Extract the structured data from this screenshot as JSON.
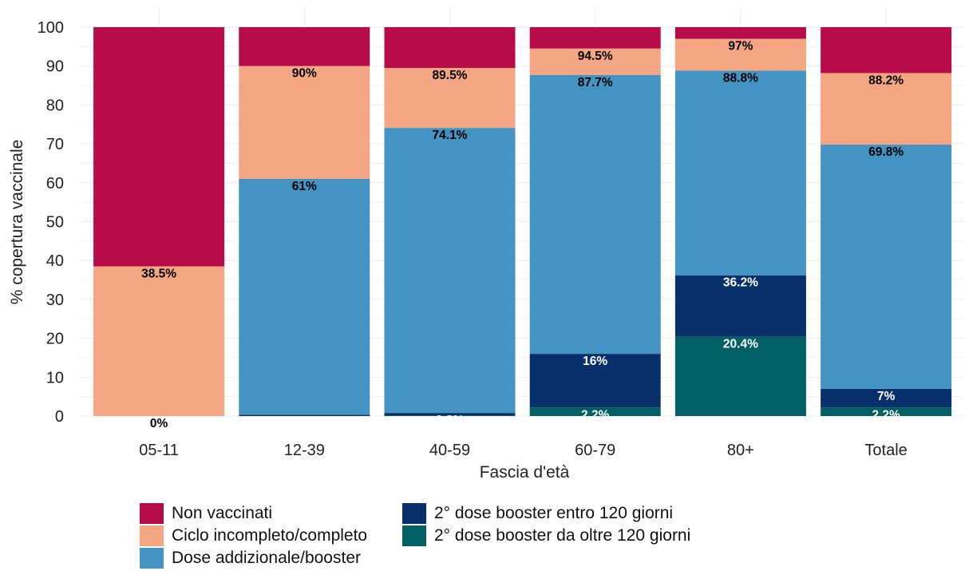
{
  "chart_data": {
    "type": "bar",
    "stacked": true,
    "xlabel": "Fascia d'età",
    "ylabel": "% copertura vaccinale",
    "ylim": [
      0,
      100
    ],
    "yticks": [
      0,
      10,
      20,
      30,
      40,
      50,
      60,
      70,
      80,
      90,
      100
    ],
    "grid": true,
    "legend_position": "bottom",
    "categories": [
      "05-11",
      "12-39",
      "40-59",
      "60-79",
      "80+",
      "Totale"
    ],
    "series": [
      {
        "name": "2° dose booster da oltre 120 giorni",
        "color": "#006064",
        "cumulative_top": [
          0,
          0,
          0.2,
          2.2,
          20.4,
          2.2
        ],
        "labels": [
          "",
          "",
          "",
          "2.2%",
          "20.4%",
          "2.2%"
        ],
        "label_color": "#ffffff"
      },
      {
        "name": "2° dose booster entro 120 giorni",
        "color": "#08306b",
        "cumulative_top": [
          0,
          0.3,
          0.8,
          16,
          36.2,
          7
        ],
        "labels": [
          "",
          "0.3%",
          "0.8%",
          "16%",
          "36.2%",
          "7%"
        ],
        "label_color": "#ffffff"
      },
      {
        "name": "Dose addizionale/booster",
        "color": "#4393c3",
        "cumulative_top": [
          0,
          61,
          74.1,
          87.7,
          88.8,
          69.8
        ],
        "labels": [
          "0%",
          "61%",
          "74.1%",
          "87.7%",
          "88.8%",
          "69.8%"
        ],
        "label_color": "#000000"
      },
      {
        "name": "Ciclo incompleto/completo",
        "color": "#f4a582",
        "cumulative_top": [
          38.5,
          90,
          89.5,
          94.5,
          97,
          88.2
        ],
        "labels": [
          "38.5%",
          "90%",
          "89.5%",
          "94.5%",
          "97%",
          "88.2%"
        ],
        "label_color": "#000000"
      },
      {
        "name": "Non vaccinati",
        "color": "#b80c4a",
        "cumulative_top": [
          100,
          100,
          100,
          100,
          100,
          100
        ],
        "labels": [
          "",
          "",
          "",
          "",
          "",
          ""
        ],
        "label_color": "#ffffff"
      }
    ]
  },
  "legend": [
    {
      "label": "Non vaccinati",
      "color": "#b80c4a"
    },
    {
      "label": "Ciclo incompleto/completo",
      "color": "#f4a582"
    },
    {
      "label": "Dose addizionale/booster",
      "color": "#4393c3"
    },
    {
      "label": "2° dose booster entro 120 giorni",
      "color": "#08306b"
    },
    {
      "label": "2° dose booster da oltre 120 giorni",
      "color": "#006064"
    }
  ]
}
